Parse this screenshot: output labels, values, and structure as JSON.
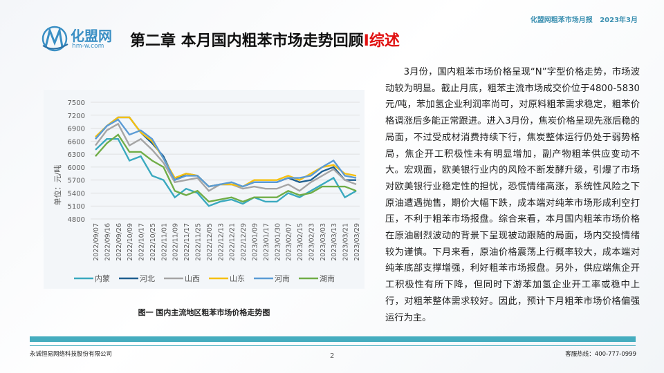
{
  "header": {
    "report_tag": "化盟网粗苯市场月报   2023年3月",
    "logo_text": "化盟网",
    "logo_url": "hm-w.com",
    "title_main": "第二章 本月国内粗苯市场走势回顾",
    "title_accent": "I综述"
  },
  "chart_data": {
    "type": "line",
    "title": "",
    "ylabel": "单位：元/吨",
    "xlabel": "",
    "ylim": [
      4800,
      7500
    ],
    "yticks": [
      4800,
      5100,
      5400,
      5700,
      6000,
      6300,
      6600,
      6900,
      7200,
      7500
    ],
    "grid": true,
    "legend_position": "bottom",
    "categories": [
      "2022/09/07",
      "2022/09/16",
      "2022/09/26",
      "2022/10/09",
      "2022/10/17",
      "2022/10/25",
      "2022/11/01",
      "2022/11/09",
      "2022/11/17",
      "2022/11/25",
      "2022/12/05",
      "2022/12/13",
      "2022/12/21",
      "2022/12/29",
      "2023/01/09",
      "2023/01/17",
      "2023/01/30",
      "2023/02/07",
      "2023/02/15",
      "2023/02/23",
      "2023/03/03",
      "2023/03/13",
      "2023/03/21",
      "2023/03/29"
    ],
    "series": [
      {
        "name": "内蒙",
        "color": "#3aa9bf",
        "values": [
          6400,
          6650,
          6650,
          6150,
          6250,
          5800,
          5700,
          5300,
          5500,
          5400,
          5100,
          5200,
          5250,
          5150,
          5300,
          5200,
          5200,
          5400,
          5300,
          5450,
          5600,
          5750,
          5300,
          5450
        ]
      },
      {
        "name": "河北",
        "color": "#1f5f8f",
        "values": [
          6650,
          6950,
          7150,
          7150,
          6800,
          6550,
          6250,
          5700,
          5850,
          5800,
          5550,
          5600,
          5600,
          5550,
          5650,
          5650,
          5650,
          5750,
          5650,
          5700,
          5900,
          6000,
          5700,
          5700
        ]
      },
      {
        "name": "山西",
        "color": "#a5a5a5",
        "values": [
          6500,
          6850,
          7000,
          6500,
          6650,
          6400,
          6100,
          5650,
          5700,
          5750,
          5450,
          5600,
          5600,
          5500,
          5550,
          5500,
          5500,
          5600,
          5450,
          5650,
          5800,
          5950,
          5700,
          5600
        ]
      },
      {
        "name": "山东",
        "color": "#f5c010",
        "values": [
          6700,
          6950,
          7150,
          7150,
          6800,
          6600,
          6200,
          5750,
          5850,
          5800,
          5550,
          5600,
          5600,
          5550,
          5700,
          5700,
          5700,
          5800,
          5700,
          5850,
          6000,
          6050,
          5850,
          5800
        ]
      },
      {
        "name": "河南",
        "color": "#5b9bd5",
        "values": [
          6650,
          6950,
          7100,
          6750,
          6850,
          6650,
          6200,
          5700,
          5800,
          5800,
          5550,
          5600,
          5650,
          5550,
          5650,
          5650,
          5650,
          5750,
          5750,
          5800,
          6000,
          6150,
          5800,
          5750
        ]
      },
      {
        "name": "湖南",
        "color": "#70ad47",
        "values": [
          6250,
          6550,
          6750,
          6350,
          6350,
          6150,
          6000,
          5450,
          5350,
          5450,
          5200,
          5250,
          5300,
          5200,
          5300,
          5300,
          5300,
          5450,
          5350,
          5400,
          5550,
          5550,
          5550,
          5450
        ]
      }
    ]
  },
  "caption": "图一 国内主流地区粗苯市场价格走势图",
  "paragraph": "3月份，国内粗苯市场价格呈现“N”字型价格走势，市场波动较为明显。截止月底，粗苯主流市场成交价位于4800-5830元/吨，苯加氢企业利润率尚可，对原料粗苯需求稳定，粗苯价格调涨后多能正常跟进。进入3月份，焦炭价格呈现先涨后稳的局面，不过受成材消费持续下行，焦炭整体运行仍处于弱势格局，焦企开工积极性未有明显增加，副产物粗苯供应变动不大。宏观面，欧美银行业内的风险不断发酵升级，引爆了市场对欧美银行业稳定性的担忧，恐慌情绪高涨，系统性风险之下原油遭遇抛售，期价大幅下跌，成本端对纯苯市场形成利空打压，不利于粗苯市场报盘。综合来看，本月国内粗苯市场价格在原油剧烈波动的背景下呈现被动跟随的局面，场内交投情绪较为谨慎。下月来看，原油价格震荡上行概率较大，成本端对纯苯底部支撑增强，利好粗苯市场报盘。另外，供应端焦企开工积极性有所下降，但同时下游苯加氢企业开工率或稳中上行，对粗苯整体需求较好。因此，预计下月粗苯市场价格偏强运行为主。",
  "footer": {
    "company": "永诚恒易网络科技股份有限公司",
    "page_number": "2",
    "hotline": "客服热线：400-777-0999"
  },
  "colors": {
    "accent": "#45adbf",
    "title_accent": "#e01010",
    "logo": "#3a8fc4"
  }
}
